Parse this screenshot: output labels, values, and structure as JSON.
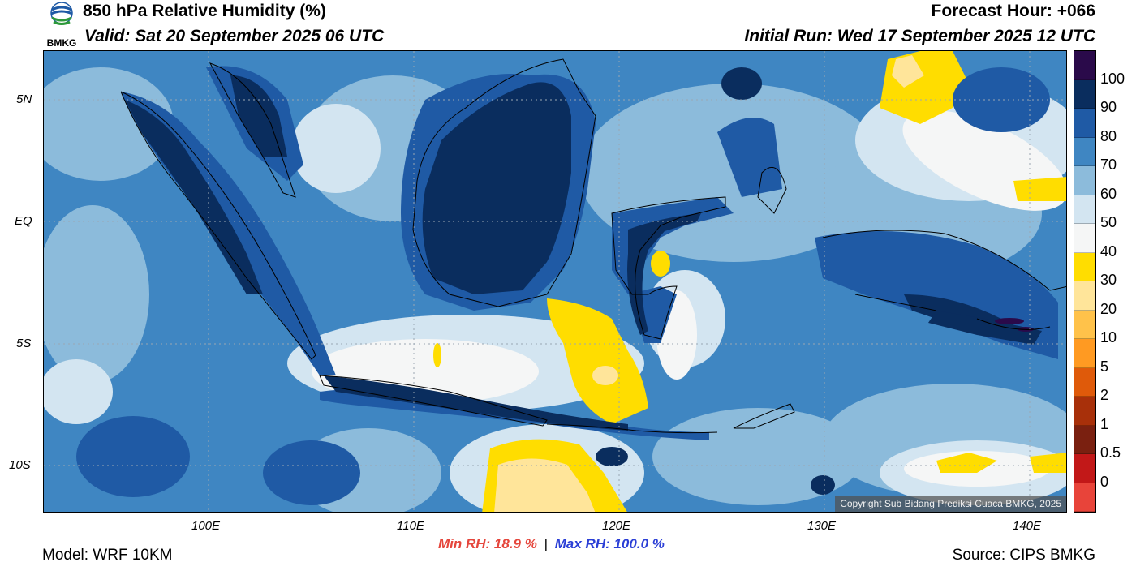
{
  "header": {
    "title": "850 hPa Relative Humidity (%)",
    "valid": "Valid: Sat 20 September 2025 06 UTC",
    "forecast_hour": "Forecast Hour: +066",
    "initial_run": "Initial Run: Wed 17 September 2025 12 UTC",
    "logo_text": "BMKG"
  },
  "axes": {
    "lat_ticks": [
      "5N",
      "EQ",
      "5S",
      "10S"
    ],
    "lon_ticks": [
      "100E",
      "110E",
      "120E",
      "130E",
      "140E"
    ]
  },
  "colorbar": {
    "labels": [
      "100",
      "90",
      "80",
      "70",
      "60",
      "50",
      "40",
      "30",
      "20",
      "10",
      "5",
      "2",
      "1",
      "0.5",
      "0"
    ],
    "colors": [
      "#2a0a4a",
      "#0a2d5e",
      "#1f5aa5",
      "#3f86c2",
      "#8cbbdb",
      "#d3e5f1",
      "#f5f6f6",
      "#ffdd00",
      "#ffe59a",
      "#ffc24a",
      "#ff9a22",
      "#df5a0a",
      "#a8300a",
      "#7a2010",
      "#c21818",
      "#e8443a"
    ]
  },
  "footer": {
    "model": "Model: WRF 10KM",
    "min_rh": "Min RH:  18.9 %",
    "separator": "|",
    "max_rh": "Max RH: 100.0 %",
    "source": "Source: CIPS BMKG",
    "copyright": "Copyright Sub Bidang Prediksi Cuaca BMKG, 2025"
  },
  "map_colors": {
    "sea_base": "#3f86c2",
    "very_humid": "#0a2d5e",
    "humid": "#1f5aa5",
    "moderate": "#8cbbdb",
    "dryish": "#d3e5f1",
    "dry_white": "#f5f6f6",
    "dry_yellow": "#ffdd00",
    "very_dry": "#ffe59a"
  }
}
